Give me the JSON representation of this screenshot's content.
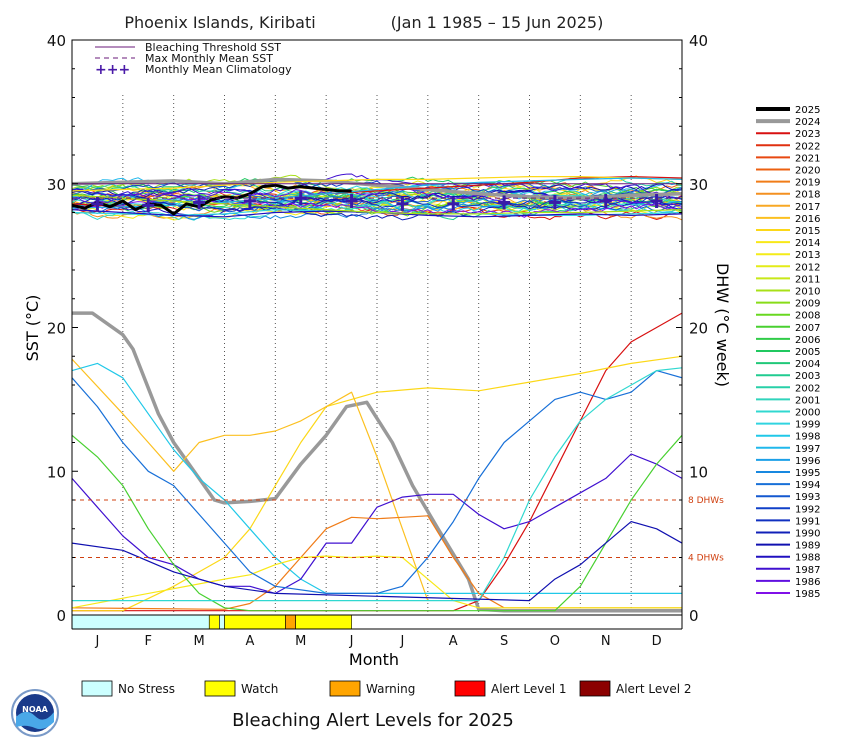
{
  "chart_data": {
    "type": "line",
    "title": "Phoenix Islands, Kiribati",
    "date_range": "(Jan 1 1985 – 15 Jun 2025)",
    "xlabel": "Month",
    "ylabel_left": "SST (°C)",
    "ylabel_right": "DHW (°C week)",
    "ylim": [
      0,
      40
    ],
    "yticks": [
      "0",
      "10",
      "20",
      "30",
      "40"
    ],
    "months": [
      "J",
      "F",
      "M",
      "A",
      "M",
      "J",
      "J",
      "A",
      "S",
      "O",
      "N",
      "D"
    ],
    "legend": [
      "Bleaching Threshold SST",
      "Max Monthly Mean SST",
      "Monthly Mean Climatology"
    ],
    "bleaching_threshold_sst": 30.0,
    "max_monthly_mean_sst": 29.0,
    "climatology_x": [
      0.5,
      1.5,
      2.5,
      3.5,
      4.5,
      5.5,
      6.5,
      7.5,
      8.5,
      9.5,
      10.5,
      11.5
    ],
    "climatology": [
      28.6,
      28.5,
      28.7,
      28.8,
      29.0,
      28.8,
      28.6,
      28.6,
      28.7,
      28.7,
      28.8,
      28.8
    ],
    "dhw_thresholds": [
      {
        "value": 8,
        "label": "8 DHWs"
      },
      {
        "value": 4,
        "label": "4 DHWs"
      }
    ],
    "years": [
      "2025",
      "2024",
      "2023",
      "2022",
      "2021",
      "2020",
      "2019",
      "2018",
      "2017",
      "2016",
      "2015",
      "2014",
      "2013",
      "2012",
      "2011",
      "2010",
      "2009",
      "2008",
      "2007",
      "2006",
      "2005",
      "2004",
      "2003",
      "2002",
      "2001",
      "2000",
      "1999",
      "1998",
      "1997",
      "1996",
      "1995",
      "1994",
      "1993",
      "1992",
      "1991",
      "1990",
      "1989",
      "1988",
      "1987",
      "1986",
      "1985"
    ],
    "year_colors": [
      "#000000",
      "#999999",
      "#d81010",
      "#e03010",
      "#e84810",
      "#ec6010",
      "#f07c18",
      "#f49020",
      "#f8a824",
      "#fcc020",
      "#fcd818",
      "#f8e818",
      "#f4ec18",
      "#e4ec18",
      "#c8e818",
      "#a8e018",
      "#88dc18",
      "#68d820",
      "#48d030",
      "#30cc48",
      "#20c860",
      "#20c878",
      "#20cc90",
      "#28d0a8",
      "#30d4bc",
      "#30d8d0",
      "#30d4e0",
      "#20c8e8",
      "#20b8ec",
      "#1ca0e8",
      "#1888e0",
      "#1870d8",
      "#1458d0",
      "#1040c8",
      "#1030c0",
      "#1020b8",
      "#1010b0",
      "#2010c0",
      "#4010d0",
      "#6010e0",
      "#8010e8"
    ],
    "series": [
      {
        "name": "2025",
        "type": "sst",
        "x": [
          0,
          0.25,
          0.5,
          0.75,
          1,
          1.25,
          1.5,
          1.75,
          2,
          2.25,
          2.5,
          2.75,
          3,
          3.25,
          3.5,
          3.75,
          4,
          4.25,
          4.5,
          4.75,
          5,
          5.25,
          5.5
        ],
        "values": [
          28.5,
          28.3,
          28.7,
          28.4,
          28.8,
          28.2,
          28.6,
          28.5,
          27.9,
          28.6,
          28.4,
          28.9,
          29.1,
          29.0,
          29.3,
          29.8,
          29.9,
          29.7,
          29.8,
          29.7,
          29.6,
          29.5,
          29.5
        ]
      },
      {
        "name": "2024",
        "type": "sst",
        "x": [
          0,
          1,
          2,
          3,
          4,
          5,
          6,
          7,
          8,
          9,
          10,
          11,
          12
        ],
        "values": [
          30.0,
          30.1,
          30.2,
          30.0,
          30.3,
          30.2,
          29.9,
          29.6,
          29.3,
          29.1,
          29.0,
          29.2,
          29.3
        ]
      },
      {
        "name": "2023",
        "type": "sst",
        "x": [
          0,
          1,
          2,
          3,
          4,
          5,
          6,
          7,
          8,
          9,
          10,
          11,
          12
        ],
        "values": [
          28.6,
          28.4,
          28.5,
          28.7,
          29.0,
          29.3,
          29.5,
          29.7,
          29.9,
          30.1,
          30.4,
          30.5,
          30.4
        ]
      },
      {
        "name": "2015",
        "type": "sst",
        "x": [
          0,
          1,
          2,
          3,
          4,
          5,
          6,
          7,
          8,
          9,
          10,
          11,
          12
        ],
        "values": [
          29.5,
          29.6,
          29.7,
          29.9,
          30.1,
          30.2,
          30.3,
          30.3,
          30.4,
          30.5,
          30.5,
          30.4,
          30.3
        ]
      },
      {
        "name": "1997",
        "type": "sst",
        "x": [
          0,
          1,
          2,
          3,
          4,
          5,
          6,
          7,
          8,
          9,
          10,
          11,
          12
        ],
        "values": [
          28.3,
          28.4,
          28.5,
          28.7,
          29.0,
          29.3,
          29.6,
          29.9,
          30.1,
          30.2,
          30.3,
          30.4,
          30.3
        ]
      },
      {
        "name": "1999",
        "type": "sst",
        "x": [
          0,
          1,
          2,
          3,
          4,
          5,
          6,
          7,
          8,
          9,
          10,
          11,
          12
        ],
        "values": [
          28.0,
          27.9,
          27.8,
          27.9,
          28.2,
          28.1,
          28.0,
          27.9,
          27.9,
          27.8,
          27.8,
          27.9,
          28.0
        ]
      },
      {
        "name": "1988",
        "type": "sst",
        "x": [
          0,
          1,
          2,
          3,
          4,
          5,
          6,
          7,
          8,
          9,
          10,
          11,
          12
        ],
        "values": [
          28.2,
          28.0,
          27.8,
          27.7,
          28.0,
          28.1,
          28.0,
          27.8,
          27.7,
          27.8,
          27.9,
          27.8,
          27.9
        ]
      },
      {
        "name": "2010",
        "type": "sst",
        "x": [
          0,
          1,
          2,
          3,
          4,
          5,
          6,
          7,
          8,
          9,
          10,
          11,
          12
        ],
        "values": [
          29.2,
          29.0,
          28.8,
          28.6,
          28.4,
          28.2,
          28.0,
          27.9,
          27.9,
          28.0,
          28.0,
          28.1,
          28.2
        ]
      },
      {
        "name": "2024",
        "type": "dhw",
        "x": [
          0,
          0.4,
          1,
          1.2,
          1.7,
          2,
          2.5,
          2.8,
          3,
          3.5,
          4,
          4.5,
          5,
          5.4,
          5.8,
          6.3,
          6.7,
          7.2,
          7.8,
          8,
          8.5,
          12
        ],
        "values": [
          21.0,
          21.0,
          19.5,
          18.5,
          14.0,
          12.0,
          9.5,
          8.0,
          7.8,
          7.9,
          8.1,
          10.5,
          12.5,
          14.5,
          14.8,
          12.0,
          9.0,
          6.0,
          2.5,
          0.4,
          0.3,
          0.3
        ]
      },
      {
        "name": "2023",
        "type": "dhw",
        "x": [
          0,
          7.5,
          8,
          8.5,
          9,
          9.5,
          10,
          10.5,
          11,
          11.5,
          12
        ],
        "values": [
          0.3,
          0.3,
          1.0,
          3.5,
          6.5,
          10.0,
          13.5,
          17.0,
          19.0,
          20.0,
          21.0
        ]
      },
      {
        "name": "2015",
        "type": "dhw",
        "x": [
          0,
          1,
          2,
          2.5,
          3,
          3.5,
          4,
          4.5,
          5,
          5.5,
          6,
          7,
          8,
          9,
          10,
          11,
          12
        ],
        "values": [
          0.3,
          0.3,
          2.0,
          3.0,
          4.0,
          6.0,
          9.0,
          12.0,
          14.5,
          15.0,
          15.5,
          15.8,
          15.6,
          16.2,
          16.8,
          17.5,
          18.0
        ]
      },
      {
        "name": "2016",
        "type": "dhw",
        "x": [
          0,
          1,
          1.5,
          2,
          2.5,
          3,
          3.5,
          4,
          4.5,
          5,
          5.5,
          6,
          6.5,
          7
        ],
        "values": [
          17.8,
          14.0,
          12.0,
          10.0,
          12.0,
          12.5,
          12.5,
          12.8,
          13.5,
          14.5,
          15.5,
          11.0,
          6.0,
          1.0
        ]
      },
      {
        "name": "1998",
        "type": "dhw",
        "x": [
          0,
          0.5,
          1,
          1.5,
          2,
          2.5,
          3,
          3.5,
          4,
          4.5,
          5,
          12
        ],
        "values": [
          17.0,
          17.5,
          16.5,
          14.0,
          11.5,
          9.5,
          8.0,
          6.0,
          4.0,
          2.5,
          1.5,
          1.5
        ]
      },
      {
        "name": "1987",
        "type": "dhw",
        "x": [
          0,
          0.5,
          1,
          1.5,
          2,
          2.5,
          3,
          3.5,
          4,
          4.5,
          5,
          5.5,
          6,
          6.5,
          7,
          7.5,
          8,
          8.5,
          9,
          9.5,
          10,
          10.5,
          11,
          11.5,
          12
        ],
        "values": [
          9.5,
          7.5,
          5.5,
          4.0,
          3.5,
          2.5,
          2.0,
          2.0,
          1.5,
          2.5,
          5.0,
          5.0,
          7.5,
          8.2,
          8.4,
          8.4,
          7.0,
          6.0,
          6.5,
          7.5,
          8.5,
          9.5,
          11.2,
          10.5,
          9.5
        ]
      },
      {
        "name": "2019",
        "type": "dhw",
        "x": [
          0,
          3,
          3.5,
          4,
          4.5,
          5,
          5.5,
          6,
          6.5,
          7,
          7.5,
          8,
          8.5,
          12
        ],
        "values": [
          0.5,
          0.4,
          0.8,
          2.0,
          4.0,
          6.0,
          6.8,
          6.7,
          6.8,
          6.9,
          4.0,
          1.5,
          0.5,
          0.5
        ]
      },
      {
        "name": "2014",
        "type": "dhw",
        "x": [
          0,
          3,
          3.5,
          4,
          4.5,
          5,
          5.5,
          6,
          6.5,
          7,
          7.5,
          8,
          12
        ],
        "values": [
          0.5,
          2.5,
          2.8,
          3.5,
          4.0,
          4.1,
          4.0,
          4.1,
          4.0,
          2.5,
          1.0,
          0.5,
          0.5
        ]
      },
      {
        "name": "1994",
        "type": "dhw",
        "x": [
          0,
          0.5,
          1,
          1.5,
          2,
          2.5,
          3,
          3.5,
          4,
          5,
          6,
          6.5,
          7,
          7.5,
          8,
          8.5,
          9,
          9.5,
          10,
          10.5,
          11,
          11.5,
          12
        ],
        "values": [
          16.5,
          14.5,
          12.0,
          10.0,
          9.0,
          7.0,
          5.0,
          3.0,
          2.0,
          1.5,
          1.5,
          2.0,
          4.0,
          6.5,
          9.5,
          12.0,
          13.5,
          15.0,
          15.5,
          15.0,
          15.5,
          17.0,
          16.5
        ]
      },
      {
        "name": "2007",
        "type": "dhw",
        "x": [
          0,
          0.5,
          1,
          1.5,
          2,
          2.5,
          3,
          3.5,
          9.5,
          10,
          10.5,
          11,
          11.5,
          12
        ],
        "values": [
          12.5,
          11.0,
          9.0,
          6.0,
          3.5,
          1.5,
          0.5,
          0.3,
          0.3,
          2.0,
          5.0,
          8.0,
          10.5,
          12.5
        ]
      },
      {
        "name": "2000",
        "type": "dhw",
        "x": [
          0,
          8,
          8.5,
          9,
          9.5,
          10,
          10.5,
          11,
          11.5,
          12
        ],
        "values": [
          1.0,
          1.0,
          4.0,
          8.0,
          11.0,
          13.5,
          15.0,
          16.0,
          17.0,
          17.2
        ]
      },
      {
        "name": "1989",
        "type": "dhw",
        "x": [
          0,
          1,
          2,
          3,
          4,
          9,
          9.5,
          10,
          10.5,
          11,
          11.5,
          12
        ],
        "values": [
          5.0,
          4.5,
          3.0,
          2.0,
          1.5,
          1.0,
          2.5,
          3.5,
          5.0,
          6.5,
          6.0,
          5.0
        ]
      }
    ]
  },
  "bleaching_strip": {
    "x": [
      0,
      2.7,
      2.9,
      3.0,
      4.2,
      4.4,
      5.5,
      12
    ],
    "levels": [
      "No Stress",
      "Watch",
      "No Stress",
      "Watch",
      "Warning",
      "Watch",
      "none"
    ]
  },
  "alert_key": [
    {
      "label": "No Stress",
      "color": "#ccffff"
    },
    {
      "label": "Watch",
      "color": "#ffff00"
    },
    {
      "label": "Warning",
      "color": "#ffa500"
    },
    {
      "label": "Alert Level 1",
      "color": "#ff0000"
    },
    {
      "label": "Alert Level 2",
      "color": "#8b0000"
    }
  ],
  "footer": {
    "title": "Bleaching Alert Levels for 2025",
    "logo_text": "NOAA"
  }
}
